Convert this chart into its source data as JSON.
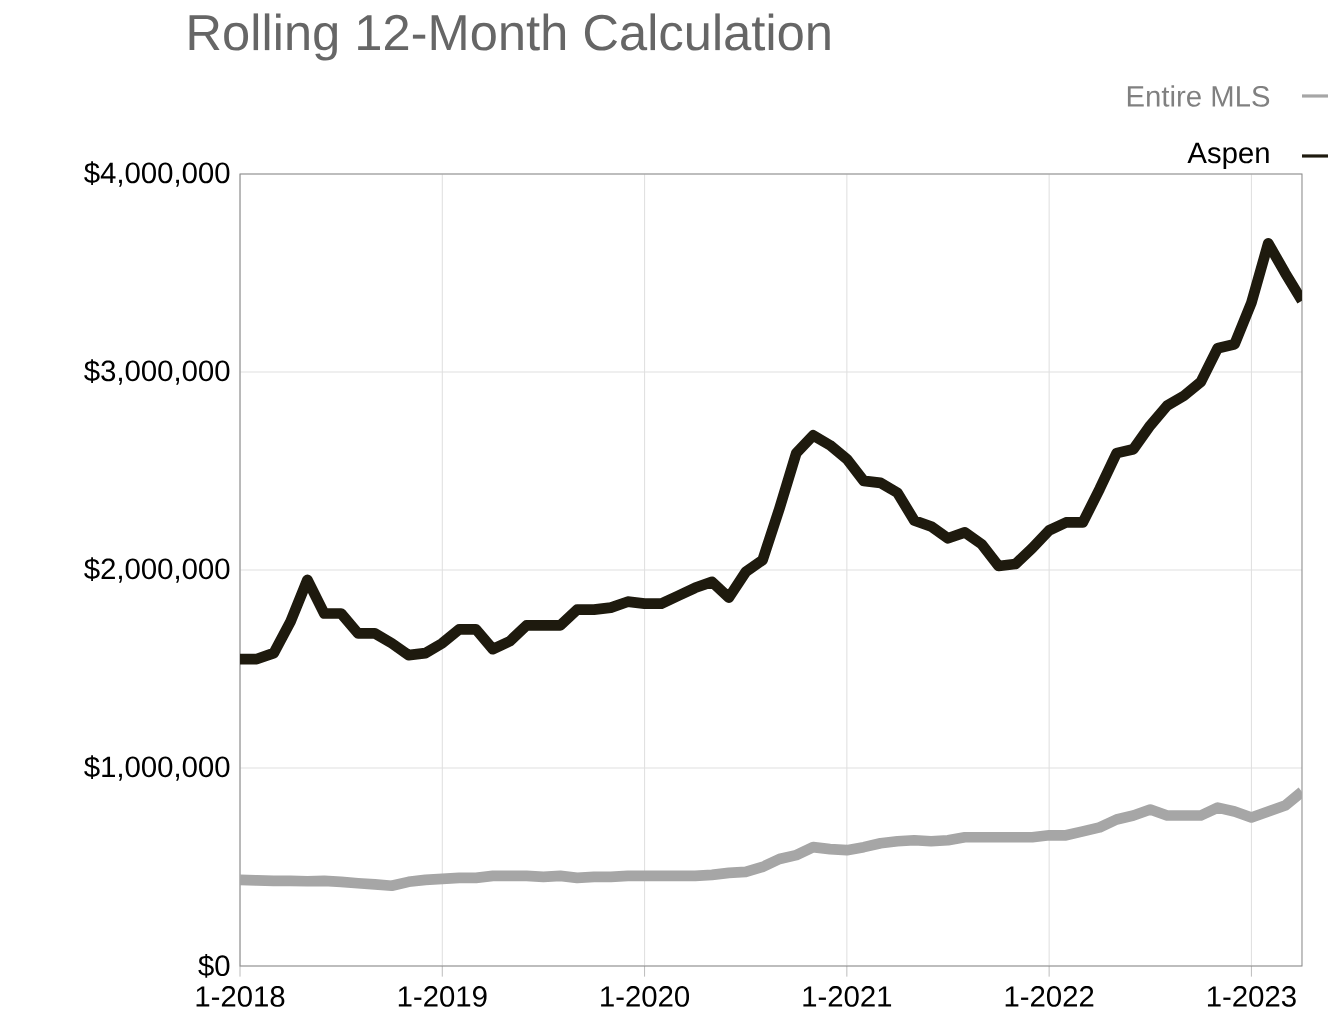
{
  "chart_data": {
    "type": "line",
    "title": "Rolling 12-Month Calculation",
    "x": [
      "2018-01",
      "2018-02",
      "2018-03",
      "2018-04",
      "2018-05",
      "2018-06",
      "2018-07",
      "2018-08",
      "2018-09",
      "2018-10",
      "2018-11",
      "2018-12",
      "2019-01",
      "2019-02",
      "2019-03",
      "2019-04",
      "2019-05",
      "2019-06",
      "2019-07",
      "2019-08",
      "2019-09",
      "2019-10",
      "2019-11",
      "2019-12",
      "2020-01",
      "2020-02",
      "2020-03",
      "2020-04",
      "2020-05",
      "2020-06",
      "2020-07",
      "2020-08",
      "2020-09",
      "2020-10",
      "2020-11",
      "2020-12",
      "2021-01",
      "2021-02",
      "2021-03",
      "2021-04",
      "2021-05",
      "2021-06",
      "2021-07",
      "2021-08",
      "2021-09",
      "2021-10",
      "2021-11",
      "2021-12",
      "2022-01",
      "2022-02",
      "2022-03",
      "2022-04",
      "2022-05",
      "2022-06",
      "2022-07",
      "2022-08",
      "2022-09",
      "2022-10",
      "2022-11",
      "2022-12",
      "2023-01",
      "2023-02",
      "2023-03",
      "2023-04"
    ],
    "series": [
      {
        "name": "Entire MLS",
        "color": "#a6a6a6",
        "values": [
          435000,
          432000,
          430000,
          430000,
          428000,
          430000,
          425000,
          418000,
          412000,
          405000,
          425000,
          435000,
          440000,
          445000,
          445000,
          455000,
          455000,
          455000,
          450000,
          455000,
          445000,
          450000,
          450000,
          455000,
          455000,
          455000,
          455000,
          455000,
          460000,
          470000,
          475000,
          500000,
          540000,
          560000,
          600000,
          590000,
          585000,
          600000,
          620000,
          630000,
          635000,
          630000,
          635000,
          650000,
          650000,
          650000,
          650000,
          650000,
          660000,
          660000,
          680000,
          700000,
          740000,
          760000,
          790000,
          760000,
          760000,
          760000,
          800000,
          780000,
          750000,
          780000,
          810000,
          880000
        ]
      },
      {
        "name": "Aspen",
        "color": "#1e1a0e",
        "values": [
          1550000,
          1550000,
          1580000,
          1740000,
          1950000,
          1780000,
          1780000,
          1680000,
          1680000,
          1630000,
          1570000,
          1580000,
          1630000,
          1700000,
          1700000,
          1600000,
          1640000,
          1720000,
          1720000,
          1720000,
          1800000,
          1800000,
          1810000,
          1840000,
          1830000,
          1830000,
          1870000,
          1910000,
          1940000,
          1860000,
          1990000,
          2050000,
          2310000,
          2590000,
          2680000,
          2630000,
          2560000,
          2450000,
          2440000,
          2390000,
          2250000,
          2220000,
          2160000,
          2190000,
          2130000,
          2020000,
          2030000,
          2110000,
          2200000,
          2240000,
          2240000,
          2410000,
          2590000,
          2610000,
          2730000,
          2830000,
          2880000,
          2950000,
          3120000,
          3140000,
          3350000,
          3650000,
          3500000,
          3360000
        ]
      }
    ],
    "xlim": [
      "2018-01",
      "2023-04"
    ],
    "xticks": [
      {
        "value": "2018-01",
        "label": "1-2018"
      },
      {
        "value": "2019-01",
        "label": "1-2019"
      },
      {
        "value": "2020-01",
        "label": "1-2020"
      },
      {
        "value": "2021-01",
        "label": "1-2021"
      },
      {
        "value": "2022-01",
        "label": "1-2022"
      },
      {
        "value": "2023-01",
        "label": "1-2023"
      }
    ],
    "ylim": [
      0,
      4000000
    ],
    "yticks": [
      {
        "value": 0,
        "label": "$0"
      },
      {
        "value": 1000000,
        "label": "$1,000,000"
      },
      {
        "value": 2000000,
        "label": "$2,000,000"
      },
      {
        "value": 3000000,
        "label": "$3,000,000"
      },
      {
        "value": 4000000,
        "label": "$4,000,000"
      }
    ],
    "grid": true,
    "legend": "top right",
    "marker": "none",
    "line_style": "solid"
  }
}
